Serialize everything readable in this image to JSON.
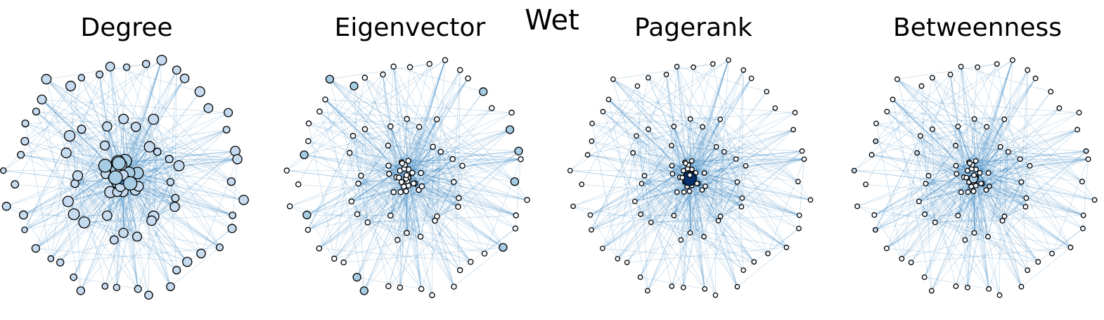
{
  "figure": {
    "suptitle": "Wet"
  },
  "panels": [
    {
      "title": "Degree"
    },
    {
      "title": "Eigenvector"
    },
    {
      "title": "Pagerank"
    },
    {
      "title": "Betweenness"
    }
  ],
  "colors": {
    "edge": "#2a79b9",
    "node_low": "#f7fbff",
    "node_mid": "#a6cde3",
    "node_high": "#08306b",
    "node_outline": "#000000"
  }
}
